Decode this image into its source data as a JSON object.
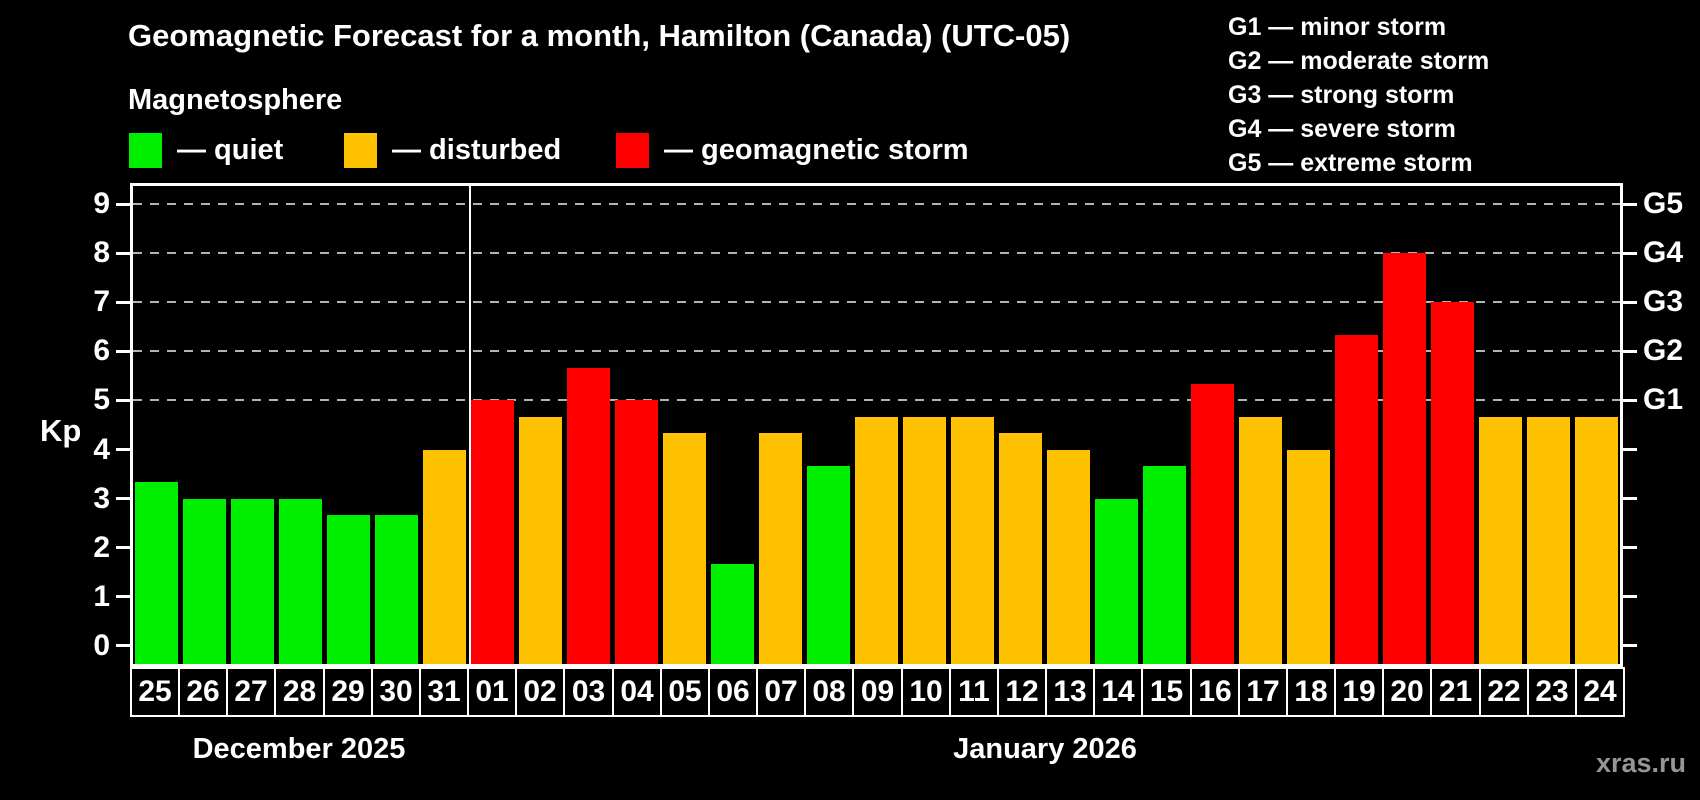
{
  "watermark": "xras.ru",
  "colors": {
    "background": "#000000",
    "axis": "#ffffff",
    "gridline": "#b3b3b3",
    "watermark_text": "#969696"
  },
  "chart_data": {
    "type": "bar",
    "title": "Geomagnetic Forecast for a month, Hamilton (Canada) (UTC-05)",
    "subtitle": "Magnetosphere",
    "ylabel": "Kp",
    "ylim": [
      0,
      9
    ],
    "yticks": [
      0,
      1,
      2,
      3,
      4,
      5,
      6,
      7,
      8,
      9
    ],
    "gridlines_at": [
      5,
      6,
      7,
      8,
      9
    ],
    "grid_style": "dashed horizontal lines at Kp 5 through 9",
    "legend_position": "top-left",
    "legend": [
      {
        "status": "quiet",
        "label": "— quiet",
        "color": "#00f000"
      },
      {
        "status": "disturbed",
        "label": "— disturbed",
        "color": "#ffc200"
      },
      {
        "status": "storm",
        "label": "— geomagnetic storm",
        "color": "#ff0000"
      }
    ],
    "right_axis": [
      {
        "value": 5,
        "label": "G1"
      },
      {
        "value": 6,
        "label": "G2"
      },
      {
        "value": 7,
        "label": "G3"
      },
      {
        "value": 8,
        "label": "G4"
      },
      {
        "value": 9,
        "label": "G5"
      }
    ],
    "g_scale_legend": [
      "G1 — minor storm",
      "G2 — moderate storm",
      "G3 — strong storm",
      "G4 — severe storm",
      "G5 — extreme storm"
    ],
    "months": [
      {
        "label": "December 2025",
        "count": 7
      },
      {
        "label": "January 2026",
        "count": 24
      }
    ],
    "bars": [
      {
        "day": "25",
        "kp": 3.33,
        "status": "quiet"
      },
      {
        "day": "26",
        "kp": 3.0,
        "status": "quiet"
      },
      {
        "day": "27",
        "kp": 3.0,
        "status": "quiet"
      },
      {
        "day": "28",
        "kp": 3.0,
        "status": "quiet"
      },
      {
        "day": "29",
        "kp": 2.67,
        "status": "quiet"
      },
      {
        "day": "30",
        "kp": 2.67,
        "status": "quiet"
      },
      {
        "day": "31",
        "kp": 4.0,
        "status": "disturbed"
      },
      {
        "day": "01",
        "kp": 5.0,
        "status": "storm"
      },
      {
        "day": "02",
        "kp": 4.67,
        "status": "disturbed"
      },
      {
        "day": "03",
        "kp": 5.67,
        "status": "storm"
      },
      {
        "day": "04",
        "kp": 5.0,
        "status": "storm"
      },
      {
        "day": "05",
        "kp": 4.33,
        "status": "disturbed"
      },
      {
        "day": "06",
        "kp": 1.67,
        "status": "quiet"
      },
      {
        "day": "07",
        "kp": 4.33,
        "status": "disturbed"
      },
      {
        "day": "08",
        "kp": 3.67,
        "status": "quiet"
      },
      {
        "day": "09",
        "kp": 4.67,
        "status": "disturbed"
      },
      {
        "day": "10",
        "kp": 4.67,
        "status": "disturbed"
      },
      {
        "day": "11",
        "kp": 4.67,
        "status": "disturbed"
      },
      {
        "day": "12",
        "kp": 4.33,
        "status": "disturbed"
      },
      {
        "day": "13",
        "kp": 4.0,
        "status": "disturbed"
      },
      {
        "day": "14",
        "kp": 3.0,
        "status": "quiet"
      },
      {
        "day": "15",
        "kp": 3.67,
        "status": "quiet"
      },
      {
        "day": "16",
        "kp": 5.33,
        "status": "storm"
      },
      {
        "day": "17",
        "kp": 4.67,
        "status": "disturbed"
      },
      {
        "day": "18",
        "kp": 4.0,
        "status": "disturbed"
      },
      {
        "day": "19",
        "kp": 6.33,
        "status": "storm"
      },
      {
        "day": "20",
        "kp": 8.0,
        "status": "storm"
      },
      {
        "day": "21",
        "kp": 7.0,
        "status": "storm"
      },
      {
        "day": "22",
        "kp": 4.67,
        "status": "disturbed"
      },
      {
        "day": "23",
        "kp": 4.67,
        "status": "disturbed"
      },
      {
        "day": "24",
        "kp": 4.67,
        "status": "disturbed"
      }
    ]
  }
}
